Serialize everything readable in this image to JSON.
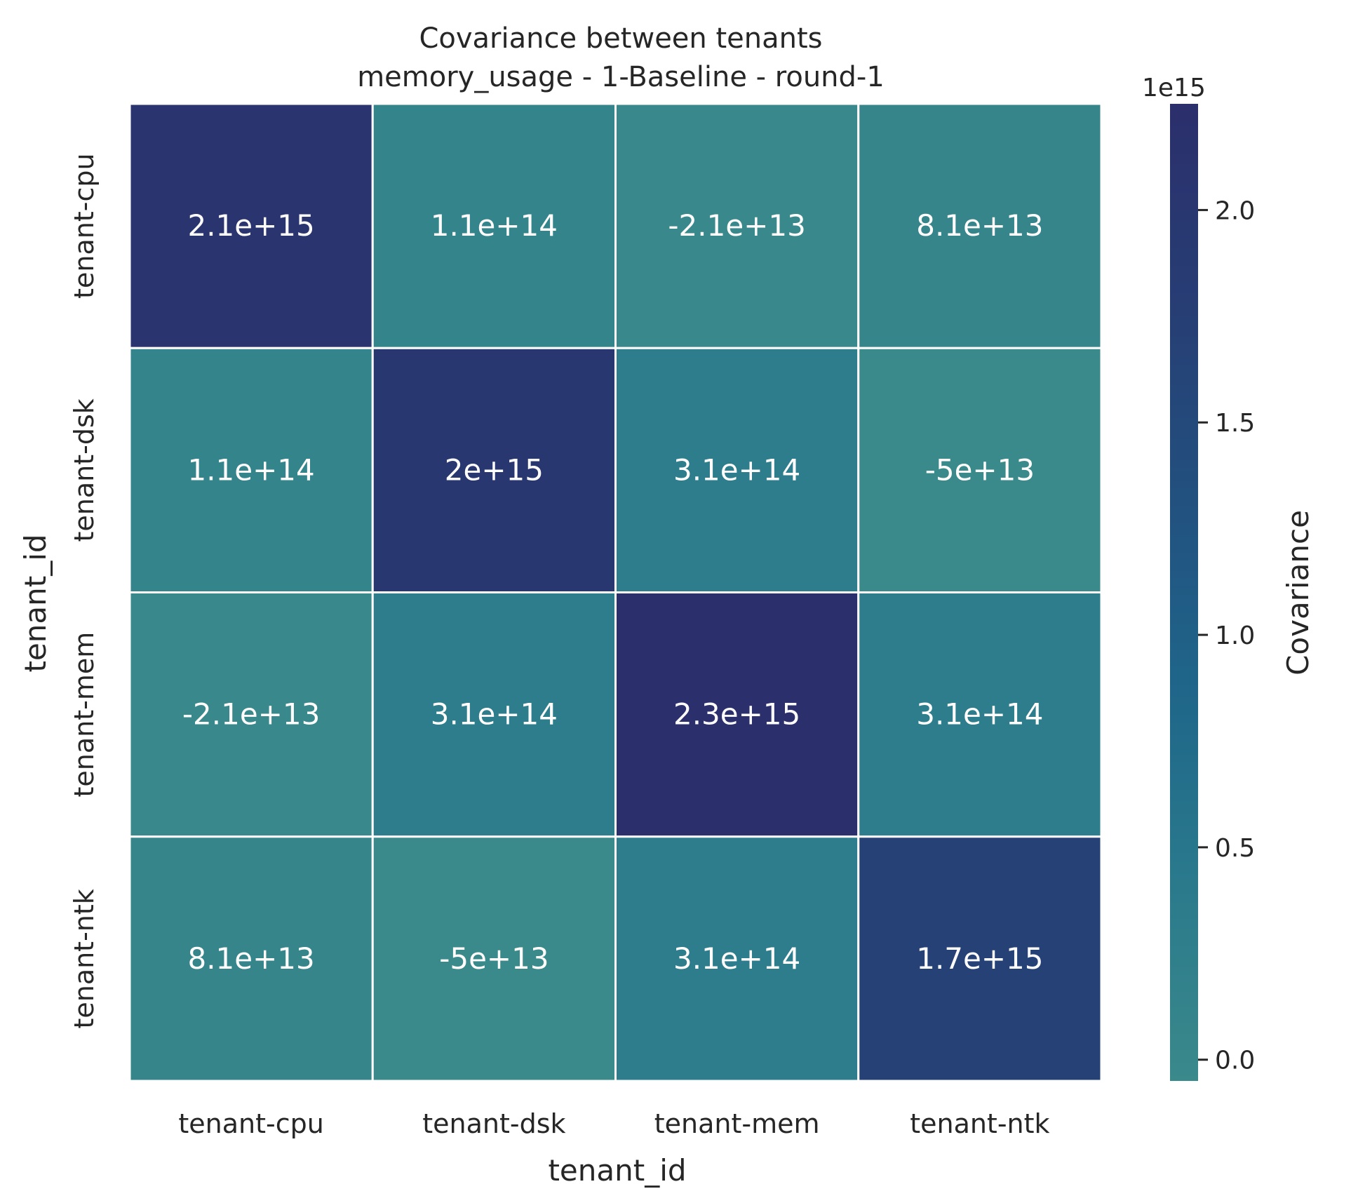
{
  "chart_data": {
    "type": "heatmap",
    "title": [
      "Covariance between tenants",
      "memory_usage - 1-Baseline - round-1"
    ],
    "xlabel": "tenant_id",
    "ylabel": "tenant_id",
    "x_categories": [
      "tenant-cpu",
      "tenant-dsk",
      "tenant-mem",
      "tenant-ntk"
    ],
    "y_categories": [
      "tenant-cpu",
      "tenant-dsk",
      "tenant-mem",
      "tenant-ntk"
    ],
    "values": [
      [
        2100000000000000.0,
        110000000000000.0,
        -21000000000000.0,
        81000000000000.0
      ],
      [
        110000000000000.0,
        2000000000000000.0,
        310000000000000.0,
        -50000000000000.0
      ],
      [
        -21000000000000.0,
        310000000000000.0,
        2300000000000000.0,
        310000000000000.0
      ],
      [
        81000000000000.0,
        -50000000000000.0,
        310000000000000.0,
        1700000000000000.0
      ]
    ],
    "annotations": [
      [
        "2.1e+15",
        "1.1e+14",
        "-2.1e+13",
        "8.1e+13"
      ],
      [
        "1.1e+14",
        "2e+15",
        "3.1e+14",
        "-5e+13"
      ],
      [
        "-2.1e+13",
        "3.1e+14",
        "2.3e+15",
        "3.1e+14"
      ],
      [
        "8.1e+13",
        "-5e+13",
        "3.1e+14",
        "1.7e+15"
      ]
    ],
    "colorbar": {
      "label": "Covariance",
      "exponent_label": "1e15",
      "range": [
        -0.05,
        2.25
      ],
      "ticks": [
        0.0,
        0.5,
        1.0,
        1.5,
        2.0
      ],
      "tick_labels": [
        "0.0",
        "0.5",
        "1.0",
        "1.5",
        "2.0"
      ]
    },
    "colormap": [
      "#3a898b",
      "#2a7a8c",
      "#1f668a",
      "#22507f",
      "#273d74",
      "#2b2f6c"
    ],
    "grid": false,
    "legend": "colorbar-right"
  }
}
